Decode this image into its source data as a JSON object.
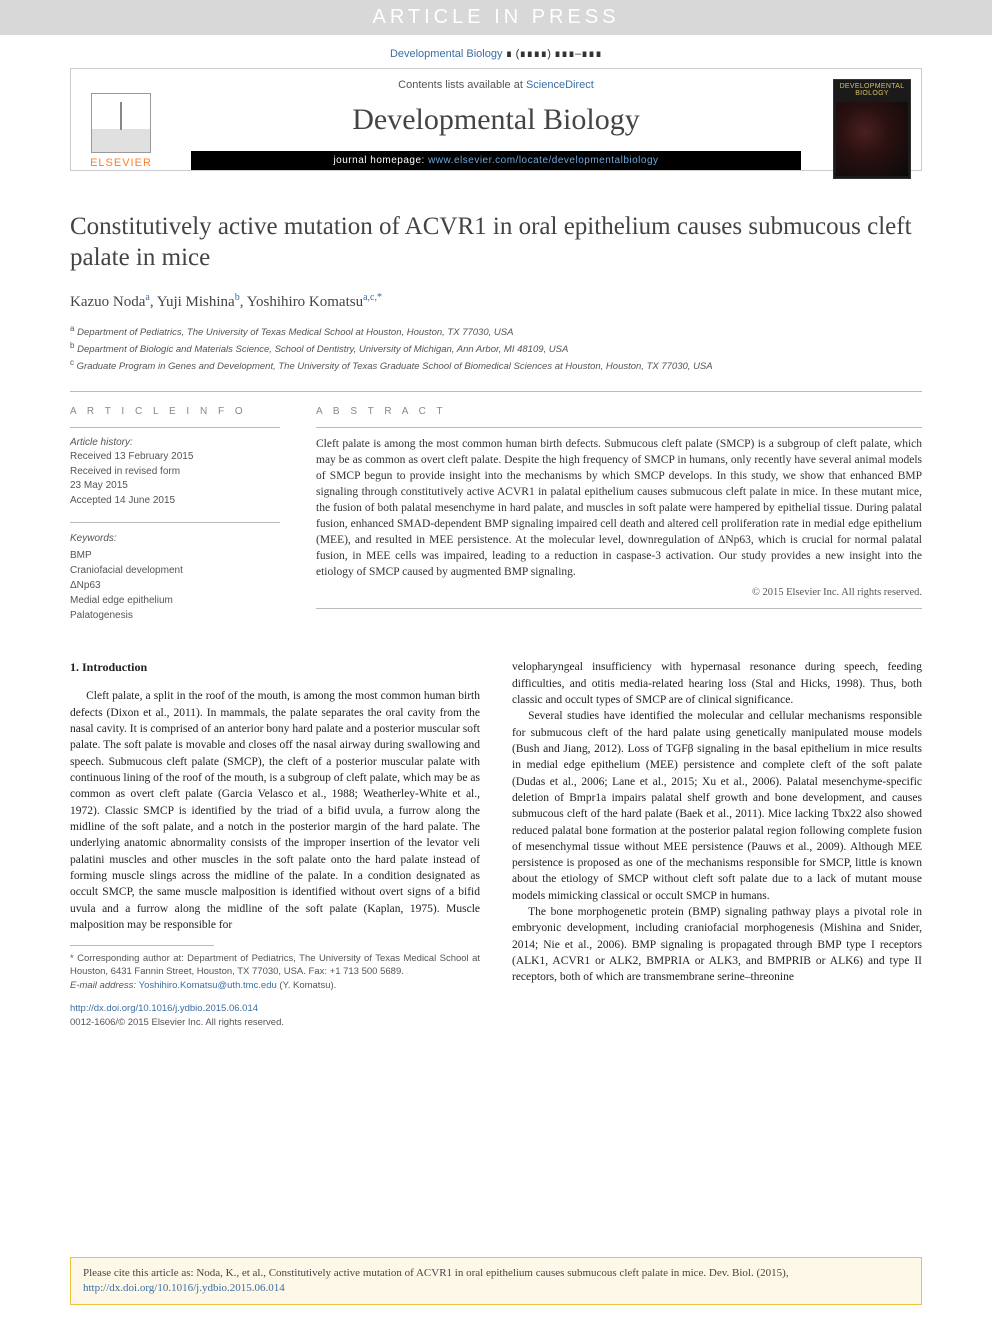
{
  "banner": {
    "text": "ARTICLE IN PRESS"
  },
  "journal_ref_top": {
    "journal": "Developmental Biology",
    "vol_placeholder": "∎ (∎∎∎∎) ∎∎∎–∎∎∎"
  },
  "masthead": {
    "contents_prefix": "Contents lists available at ",
    "contents_link": "ScienceDirect",
    "journal_name": "Developmental Biology",
    "homepage_prefix": "journal homepage: ",
    "homepage_url": "www.elsevier.com/locate/developmentalbiology",
    "publisher_brand": "ELSEVIER",
    "cover_title": "DEVELOPMENTAL BIOLOGY"
  },
  "article": {
    "title": "Constitutively active mutation of ACVR1 in oral epithelium causes submucous cleft palate in mice",
    "authors_html": "Kazuo Noda|a|, Yuji Mishina|b|, Yoshihiro Komatsu|a,c,*",
    "authors": [
      {
        "name": "Kazuo Noda",
        "sup": "a"
      },
      {
        "name": "Yuji Mishina",
        "sup": "b"
      },
      {
        "name": "Yoshihiro Komatsu",
        "sup": "a,c,*"
      }
    ],
    "affiliations": [
      {
        "sup": "a",
        "text": "Department of Pediatrics, The University of Texas Medical School at Houston, Houston, TX 77030, USA"
      },
      {
        "sup": "b",
        "text": "Department of Biologic and Materials Science, School of Dentistry, University of Michigan, Ann Arbor, MI 48109, USA"
      },
      {
        "sup": "c",
        "text": "Graduate Program in Genes and Development, The University of Texas Graduate School of Biomedical Sciences at Houston, Houston, TX 77030, USA"
      }
    ]
  },
  "info": {
    "heading_left": "A R T I C L E  I N F O",
    "heading_right": "A B S T R A C T",
    "history_label": "Article history:",
    "history": [
      "Received 13 February 2015",
      "Received in revised form",
      "23 May 2015",
      "Accepted 14 June 2015"
    ],
    "keywords_label": "Keywords:",
    "keywords": [
      "BMP",
      "Craniofacial development",
      "ΔNp63",
      "Medial edge epithelium",
      "Palatogenesis"
    ],
    "abstract": "Cleft palate is among the most common human birth defects. Submucous cleft palate (SMCP) is a subgroup of cleft palate, which may be as common as overt cleft palate. Despite the high frequency of SMCP in humans, only recently have several animal models of SMCP begun to provide insight into the mechanisms by which SMCP develops. In this study, we show that enhanced BMP signaling through constitutively active ACVR1 in palatal epithelium causes submucous cleft palate in mice. In these mutant mice, the fusion of both palatal mesenchyme in hard palate, and muscles in soft palate were hampered by epithelial tissue. During palatal fusion, enhanced SMAD-dependent BMP signaling impaired cell death and altered cell proliferation rate in medial edge epithelium (MEE), and resulted in MEE persistence. At the molecular level, downregulation of ΔNp63, which is crucial for normal palatal fusion, in MEE cells was impaired, leading to a reduction in caspase-3 activation. Our study provides a new insight into the etiology of SMCP caused by augmented BMP signaling.",
    "copyright": "© 2015 Elsevier Inc. All rights reserved."
  },
  "body": {
    "section_1_heading": "1. Introduction",
    "col1_p1": "Cleft palate, a split in the roof of the mouth, is among the most common human birth defects (Dixon et al., 2011). In mammals, the palate separates the oral cavity from the nasal cavity. It is comprised of an anterior bony hard palate and a posterior muscular soft palate. The soft palate is movable and closes off the nasal airway during swallowing and speech. Submucous cleft palate (SMCP), the cleft of a posterior muscular palate with continuous lining of the roof of the mouth, is a subgroup of cleft palate, which may be as common as overt cleft palate (Garcia Velasco et al., 1988; Weatherley-White et al., 1972). Classic SMCP is identified by the triad of a bifid uvula, a furrow along the midline of the soft palate, and a notch in the posterior margin of the hard palate. The underlying anatomic abnormality consists of the improper insertion of the levator veli palatini muscles and other muscles in the soft palate onto the hard palate instead of forming muscle slings across the midline of the palate. In a condition designated as occult SMCP, the same muscle malposition is identified without overt signs of a bifid uvula and a furrow along the midline of the soft palate (Kaplan, 1975). Muscle malposition may be responsible for",
    "col2_p1": "velopharyngeal insufficiency with hypernasal resonance during speech, feeding difficulties, and otitis media-related hearing loss (Stal and Hicks, 1998). Thus, both classic and occult types of SMCP are of clinical significance.",
    "col2_p2": "Several studies have identified the molecular and cellular mechanisms responsible for submucous cleft of the hard palate using genetically manipulated mouse models (Bush and Jiang, 2012). Loss of TGFβ signaling in the basal epithelium in mice results in medial edge epithelium (MEE) persistence and complete cleft of the soft palate (Dudas et al., 2006; Lane et al., 2015; Xu et al., 2006). Palatal mesenchyme-specific deletion of Bmpr1a impairs palatal shelf growth and bone development, and causes submucous cleft of the hard palate (Baek et al., 2011). Mice lacking Tbx22 also showed reduced palatal bone formation at the posterior palatal region following complete fusion of mesenchymal tissue without MEE persistence (Pauws et al., 2009). Although MEE persistence is proposed as one of the mechanisms responsible for SMCP, little is known about the etiology of SMCP without cleft soft palate due to a lack of mutant mouse models mimicking classical or occult SMCP in humans.",
    "col2_p3": "The bone morphogenetic protein (BMP) signaling pathway plays a pivotal role in embryonic development, including craniofacial morphogenesis (Mishina and Snider, 2014; Nie et al., 2006). BMP signaling is propagated through BMP type I receptors (ALK1, ACVR1 or ALK2, BMPRIA or ALK3, and BMPRIB or ALK6) and type II receptors, both of which are transmembrane serine–threonine"
  },
  "footnotes": {
    "corr": "* Corresponding author at: Department of Pediatrics, The University of Texas Medical School at Houston, 6431 Fannin Street, Houston, TX 77030, USA. Fax: +1 713 500 5689.",
    "email_label": "E-mail address: ",
    "email": "Yoshihiro.Komatsu@uth.tmc.edu",
    "email_suffix": " (Y. Komatsu)."
  },
  "doi": {
    "url": "http://dx.doi.org/10.1016/j.ydbio.2015.06.014",
    "issn_line": "0012-1606/© 2015 Elsevier Inc. All rights reserved."
  },
  "cite_box": {
    "prefix": "Please cite this article as: Noda, K., et al., Constitutively active mutation of ACVR1 in oral epithelium causes submucous cleft palate in mice. Dev. Biol. (2015), ",
    "url": "http://dx.doi.org/10.1016/j.ydbio.2015.06.014"
  },
  "colors": {
    "link": "#3a6ea5",
    "banner_bg": "#d8d8d8",
    "citebox_border": "#f0c040",
    "citebox_bg": "#fdf8e8",
    "brand_orange": "#ff7f27"
  }
}
